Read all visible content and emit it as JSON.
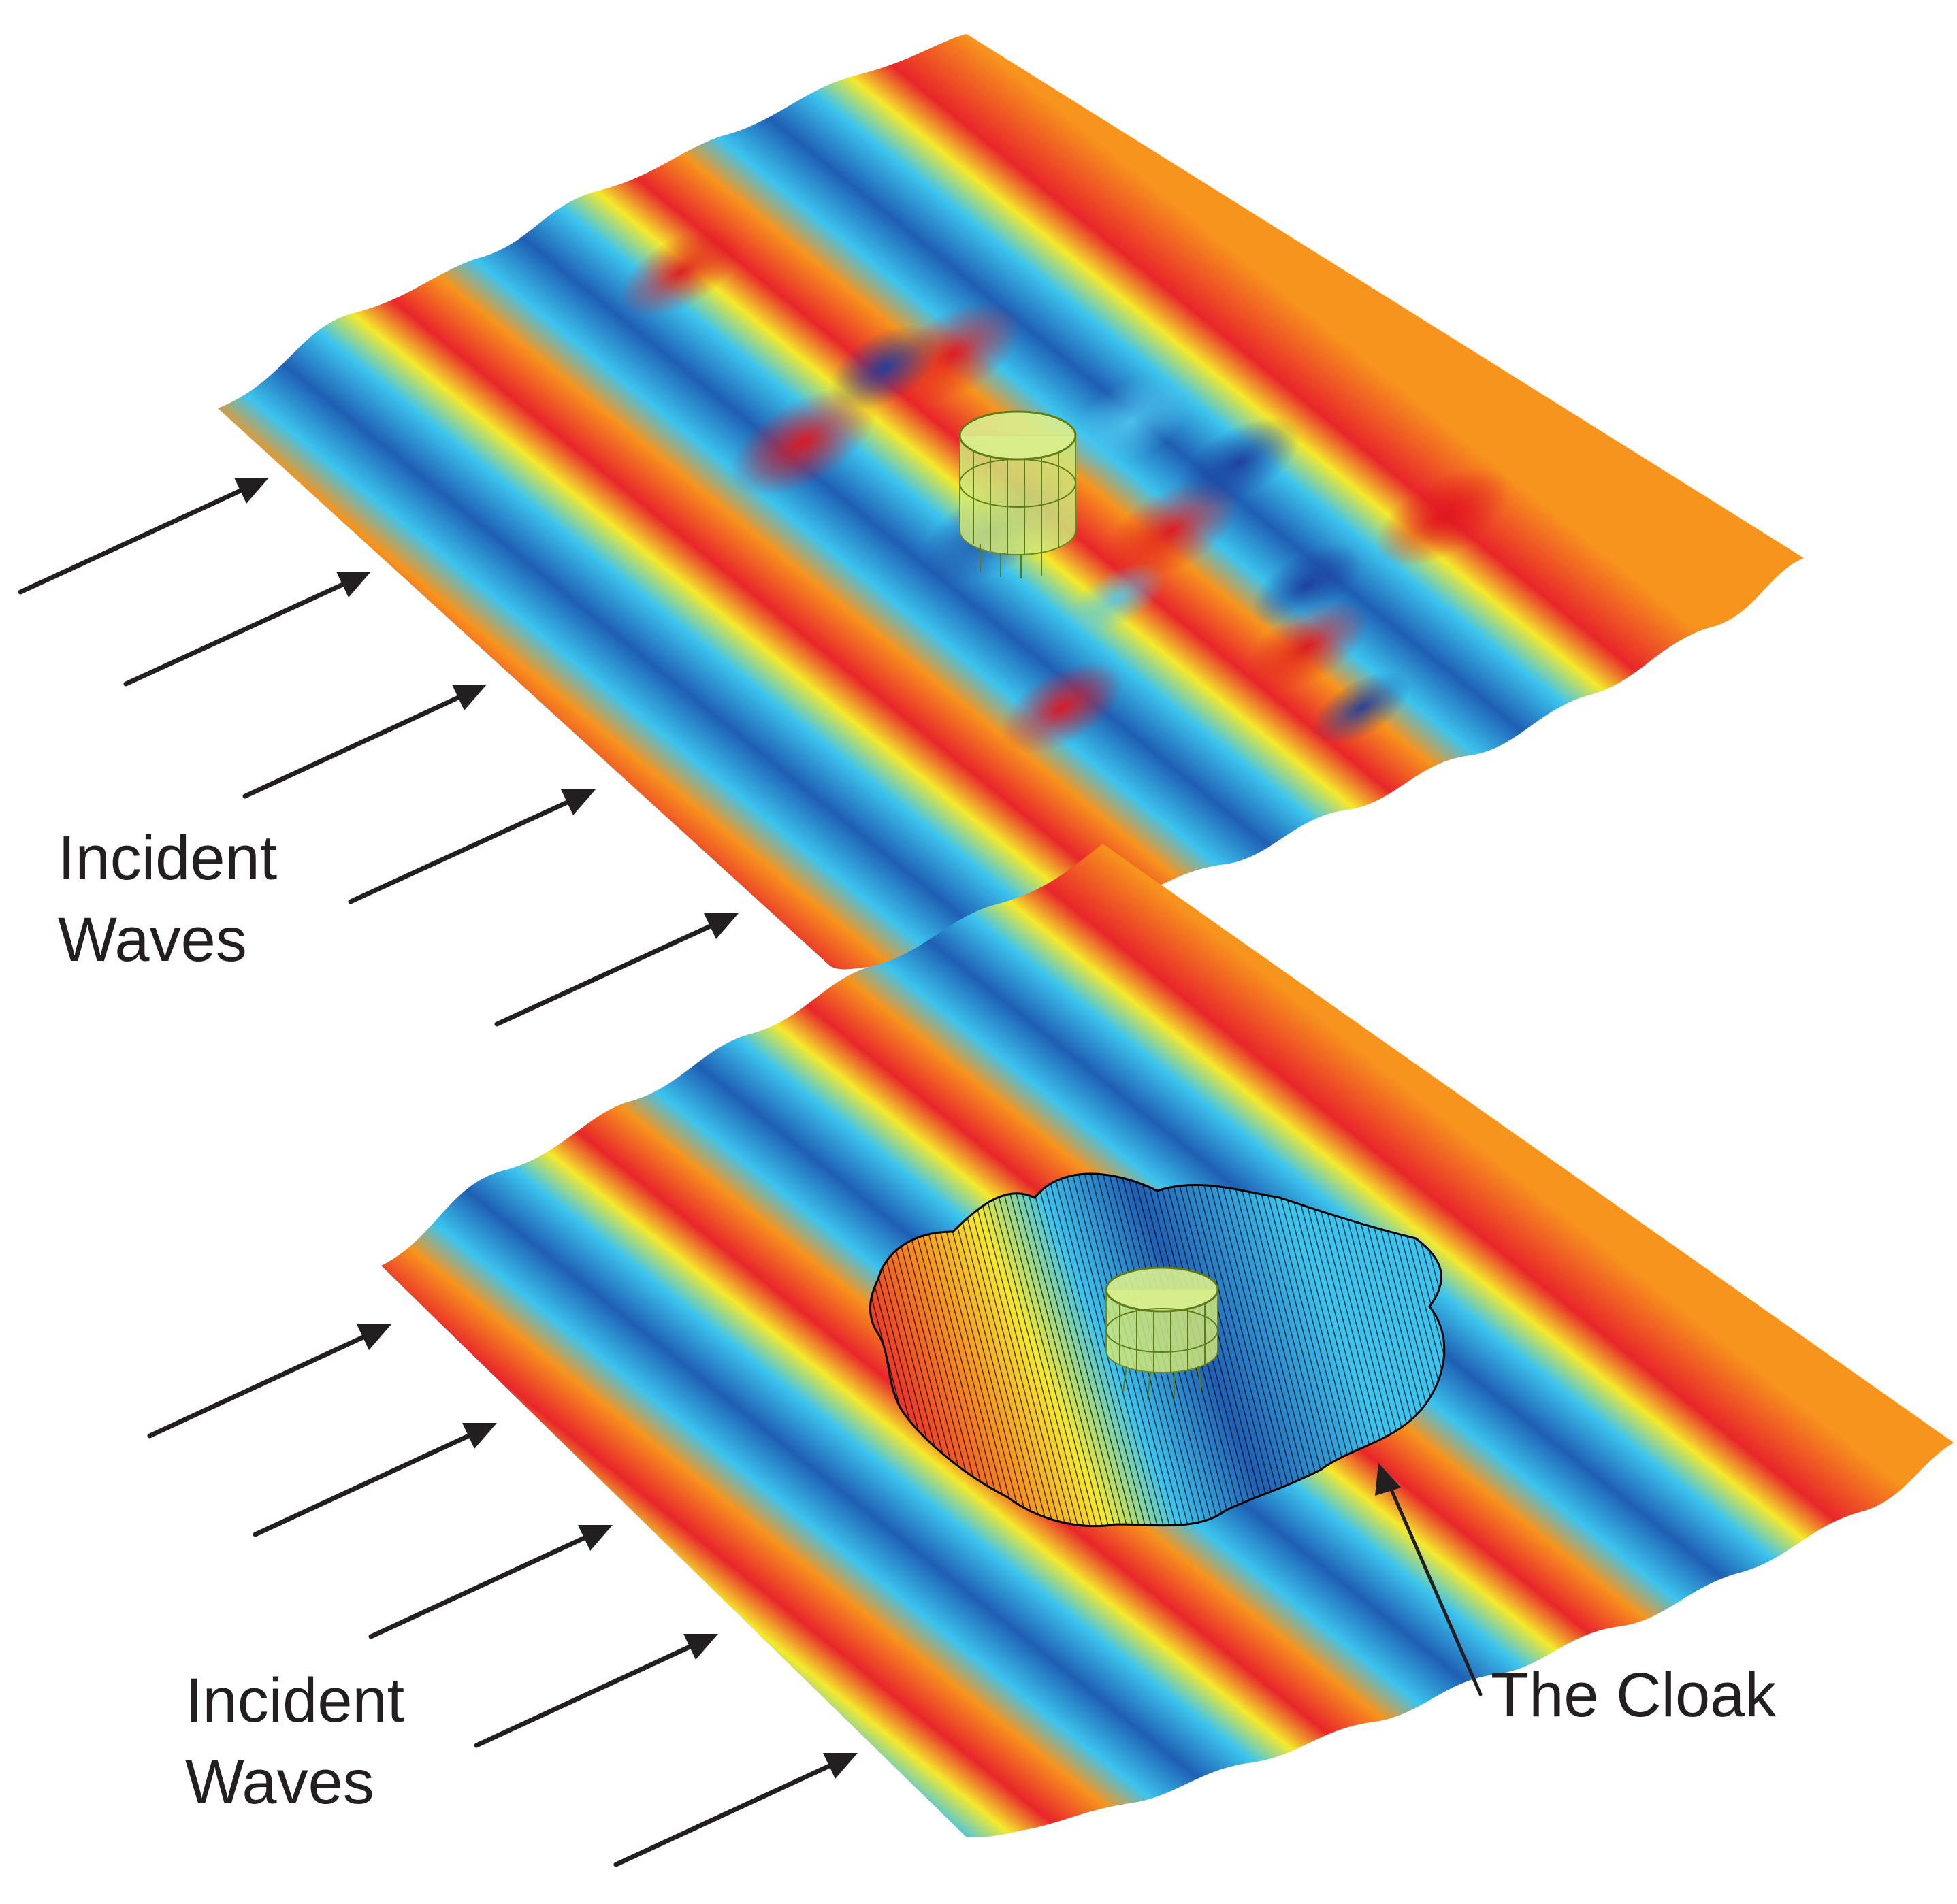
{
  "figure": {
    "panels": [
      {
        "id": "uncloaked",
        "label_line1": "Incident",
        "label_line2": "Waves",
        "has_cloak": false
      },
      {
        "id": "cloaked",
        "label_line1": "Incident",
        "label_line2": "Waves",
        "has_cloak": true,
        "cloak_label": "The Cloak"
      }
    ],
    "colors": {
      "crest": "#e8262a",
      "warm": "#f7941d",
      "mid": "#f5e92c",
      "cool": "#3cc4ee",
      "trough": "#1f5fb4",
      "deep_trough": "#1d3e9c",
      "object": "#cfe87a",
      "text": "#231f20"
    },
    "icons": [
      "incident-wave-arrow-icon",
      "cylinder-object-icon",
      "cloak-mesh-icon"
    ]
  }
}
